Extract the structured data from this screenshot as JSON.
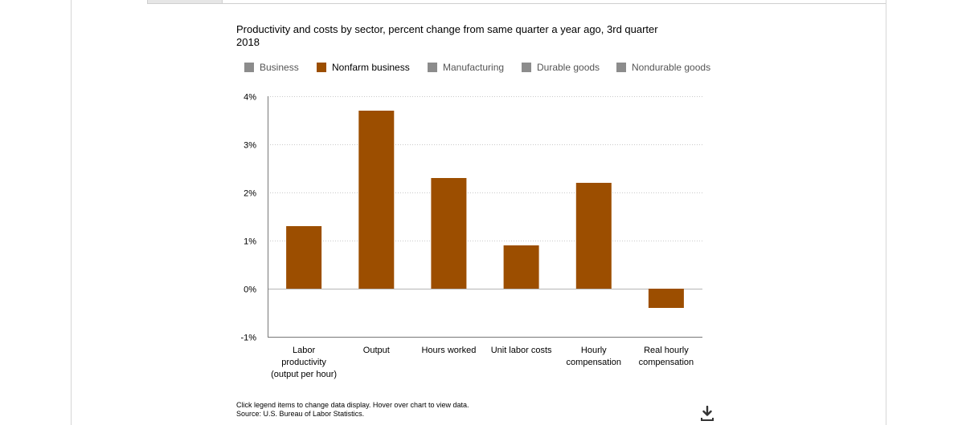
{
  "chart_data": {
    "type": "bar",
    "title": "Productivity and costs by sector, percent change from same quarter a year ago, 3rd quarter 2018",
    "categories": [
      [
        "Labor",
        "productivity",
        "(output per hour)"
      ],
      [
        "Output"
      ],
      [
        "Hours worked"
      ],
      [
        "Unit labor costs"
      ],
      [
        "Hourly",
        "compensation"
      ],
      [
        "Real hourly",
        "compensation"
      ]
    ],
    "series": [
      {
        "name": "Nonfarm business",
        "values": [
          1.3,
          3.7,
          2.3,
          0.9,
          2.2,
          -0.4
        ]
      }
    ],
    "ylim": [
      -1,
      4
    ],
    "yticks": [
      "4%",
      "3%",
      "2%",
      "1%",
      "0%",
      "-1%"
    ],
    "ytick_values": [
      4,
      3,
      2,
      1,
      0,
      -1
    ],
    "grid": true,
    "legend_position": "top",
    "colors": {
      "active": "#9c4e00",
      "inactive": "#8c8c8c"
    }
  },
  "legend": {
    "items": [
      {
        "label": "Business",
        "active": false
      },
      {
        "label": "Nonfarm business",
        "active": true
      },
      {
        "label": "Manufacturing",
        "active": false
      },
      {
        "label": "Durable goods",
        "active": false
      },
      {
        "label": "Nondurable goods",
        "active": false
      }
    ]
  },
  "footnote": {
    "line1": "Click legend items to change data display. Hover over chart to view data.",
    "line2": "Source: U.S. Bureau of Labor Statistics."
  },
  "icons": {
    "download": "download-icon"
  }
}
